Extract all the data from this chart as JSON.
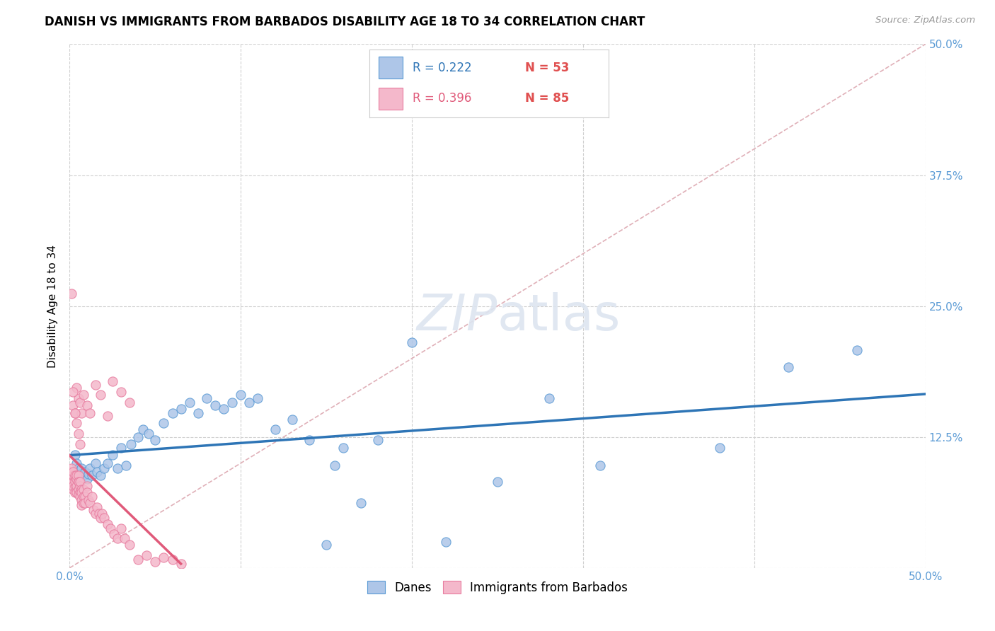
{
  "title": "DANISH VS IMMIGRANTS FROM BARBADOS DISABILITY AGE 18 TO 34 CORRELATION CHART",
  "source": "Source: ZipAtlas.com",
  "ylabel": "Disability Age 18 to 34",
  "xlim": [
    0.0,
    0.5
  ],
  "ylim": [
    0.0,
    0.5
  ],
  "danes_R": 0.222,
  "danes_N": 53,
  "immigrants_R": 0.396,
  "immigrants_N": 85,
  "danes_color": "#aec6e8",
  "danes_edge_color": "#5b9bd5",
  "danes_line_color": "#2e75b6",
  "immigrants_color": "#f4b8cb",
  "immigrants_edge_color": "#e87da0",
  "immigrants_line_color": "#e05a7a",
  "grid_color": "#d0d0d0",
  "diag_color": "#e0b0b8",
  "watermark_color": "#dde5f0",
  "right_tick_color": "#5b9bd5",
  "bottom_tick_color": "#5b9bd5",
  "danes_x": [
    0.003,
    0.004,
    0.005,
    0.006,
    0.007,
    0.008,
    0.009,
    0.01,
    0.011,
    0.012,
    0.013,
    0.015,
    0.016,
    0.018,
    0.02,
    0.022,
    0.025,
    0.028,
    0.03,
    0.033,
    0.036,
    0.04,
    0.043,
    0.046,
    0.05,
    0.055,
    0.06,
    0.065,
    0.07,
    0.075,
    0.08,
    0.085,
    0.09,
    0.095,
    0.1,
    0.105,
    0.11,
    0.12,
    0.13,
    0.14,
    0.15,
    0.155,
    0.16,
    0.17,
    0.18,
    0.2,
    0.22,
    0.25,
    0.28,
    0.31,
    0.38,
    0.42,
    0.46
  ],
  "danes_y": [
    0.108,
    0.1,
    0.095,
    0.09,
    0.095,
    0.088,
    0.092,
    0.085,
    0.09,
    0.095,
    0.088,
    0.1,
    0.092,
    0.088,
    0.095,
    0.1,
    0.108,
    0.095,
    0.115,
    0.098,
    0.118,
    0.125,
    0.132,
    0.128,
    0.122,
    0.138,
    0.148,
    0.152,
    0.158,
    0.148,
    0.162,
    0.155,
    0.152,
    0.158,
    0.165,
    0.158,
    0.162,
    0.132,
    0.142,
    0.122,
    0.022,
    0.098,
    0.115,
    0.062,
    0.122,
    0.215,
    0.025,
    0.082,
    0.162,
    0.098,
    0.115,
    0.192,
    0.208
  ],
  "immigrants_x": [
    0.0,
    0.0,
    0.001,
    0.001,
    0.001,
    0.001,
    0.001,
    0.002,
    0.002,
    0.002,
    0.002,
    0.002,
    0.003,
    0.003,
    0.003,
    0.003,
    0.003,
    0.004,
    0.004,
    0.004,
    0.004,
    0.005,
    0.005,
    0.005,
    0.005,
    0.005,
    0.006,
    0.006,
    0.006,
    0.006,
    0.007,
    0.007,
    0.007,
    0.007,
    0.008,
    0.008,
    0.008,
    0.009,
    0.009,
    0.01,
    0.01,
    0.011,
    0.012,
    0.013,
    0.014,
    0.015,
    0.016,
    0.017,
    0.018,
    0.019,
    0.02,
    0.022,
    0.024,
    0.026,
    0.028,
    0.03,
    0.032,
    0.035,
    0.002,
    0.003,
    0.004,
    0.005,
    0.006,
    0.007,
    0.008,
    0.01,
    0.012,
    0.015,
    0.018,
    0.022,
    0.025,
    0.03,
    0.035,
    0.04,
    0.045,
    0.05,
    0.055,
    0.06,
    0.065,
    0.001,
    0.002,
    0.003,
    0.004,
    0.005,
    0.006
  ],
  "immigrants_y": [
    0.092,
    0.085,
    0.088,
    0.082,
    0.09,
    0.078,
    0.095,
    0.082,
    0.088,
    0.075,
    0.092,
    0.078,
    0.085,
    0.078,
    0.072,
    0.088,
    0.082,
    0.085,
    0.078,
    0.072,
    0.088,
    0.082,
    0.075,
    0.07,
    0.088,
    0.082,
    0.078,
    0.072,
    0.068,
    0.082,
    0.075,
    0.072,
    0.065,
    0.06,
    0.075,
    0.068,
    0.062,
    0.068,
    0.062,
    0.078,
    0.072,
    0.065,
    0.062,
    0.068,
    0.055,
    0.052,
    0.058,
    0.052,
    0.048,
    0.052,
    0.048,
    0.042,
    0.038,
    0.032,
    0.028,
    0.038,
    0.028,
    0.022,
    0.155,
    0.148,
    0.172,
    0.162,
    0.158,
    0.148,
    0.165,
    0.155,
    0.148,
    0.175,
    0.165,
    0.145,
    0.178,
    0.168,
    0.158,
    0.008,
    0.012,
    0.006,
    0.01,
    0.008,
    0.004,
    0.262,
    0.168,
    0.148,
    0.138,
    0.128,
    0.118
  ]
}
